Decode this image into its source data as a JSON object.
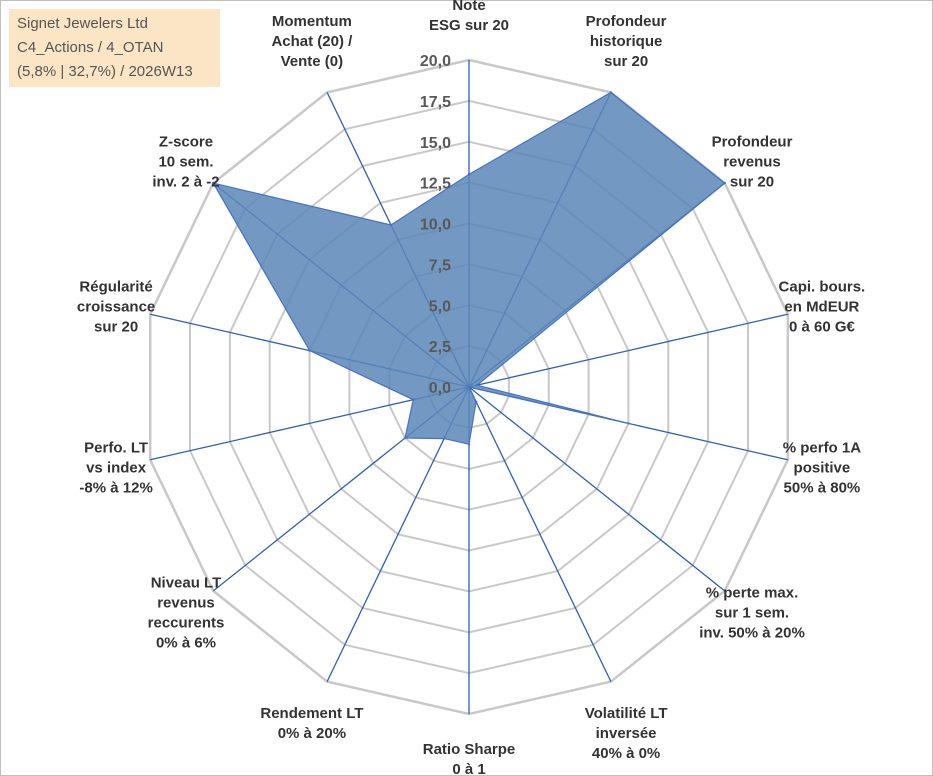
{
  "info_box": {
    "line1": "Signet Jewelers Ltd",
    "line2": "C4_Actions / 4_OTAN",
    "line3": "(5,8% | 32,7%) / 2026W13"
  },
  "colors": {
    "fill": "#5b87b9",
    "outline": "#4472c4",
    "spoke": "#2e5fb7",
    "grid": "#c8c8c8"
  },
  "chart_data": {
    "type": "radar",
    "title": "",
    "rmin": 0,
    "rmax": 20,
    "tick_step": 2.5,
    "tick_labels": [
      "0,0",
      "2,5",
      "5,0",
      "7,5",
      "10,0",
      "12,5",
      "15,0",
      "17,5",
      "20,0"
    ],
    "axes": [
      [
        "Note",
        "ESG sur 20"
      ],
      [
        "Profondeur",
        "historique",
        "sur 20"
      ],
      [
        "Profondeur",
        "revenus",
        "sur 20"
      ],
      [
        "Capi. bours.",
        "en MdEUR",
        "0 à 60 G€"
      ],
      [
        "% perfo 1A",
        "positive",
        "50% à 80%"
      ],
      [
        "% perte max.",
        "sur 1 sem.",
        "inv. 50% à 20%"
      ],
      [
        "Volatilité LT",
        "inversée",
        "40% à 0%"
      ],
      [
        "Ratio Sharpe",
        "0 à 1"
      ],
      [
        "Rendement LT",
        "0% à 20%"
      ],
      [
        "Niveau LT",
        "revenus",
        "reccurents",
        "0% à 6%"
      ],
      [
        "Perfo. LT",
        "vs index",
        "-8% à 12%"
      ],
      [
        "Régularité",
        "croissance",
        "sur 20"
      ],
      [
        "Z-score",
        "10 sem.",
        "inv. 2 à -2"
      ],
      [
        "Momentum",
        "Achat (20) /",
        "Vente (0)"
      ]
    ],
    "series": [
      {
        "values": [
          13.0,
          20.0,
          20.0,
          0.5,
          10.0,
          0.0,
          1.0,
          3.5,
          3.5,
          5.0,
          3.5,
          10.0,
          20.0,
          11.0
        ]
      }
    ]
  }
}
